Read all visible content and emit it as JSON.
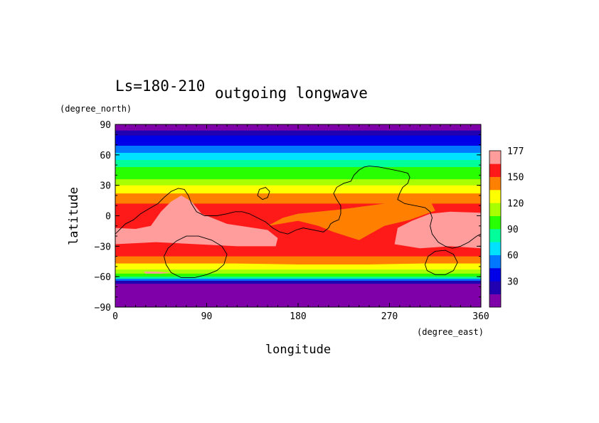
{
  "chart_data": {
    "type": "heatmap",
    "title": "outgoing longwave",
    "subtitle": "Ls=180-210",
    "xlabel": "longitude",
    "ylabel": "latitude",
    "xunit": "(degree_east)",
    "yunit": "(degree_north)",
    "xlim": [
      0,
      360
    ],
    "ylim": [
      -90,
      90
    ],
    "xticks": [
      "0",
      "90",
      "180",
      "270",
      "360"
    ],
    "yticks": [
      "90",
      "60",
      "30",
      "0",
      "-30",
      "-60",
      "-90"
    ],
    "colorbar": {
      "labels": [
        "177",
        "150",
        "120",
        "90",
        "60",
        "30"
      ],
      "levels": [
        0,
        15,
        30,
        45,
        60,
        75,
        90,
        105,
        120,
        135,
        150,
        165,
        177
      ],
      "colors": [
        "#7f00a8",
        "#2000b0",
        "#0000e8",
        "#0078ff",
        "#00e0ff",
        "#00ff9a",
        "#28ff00",
        "#a8ff00",
        "#ffff00",
        "#ff8000",
        "#ff1a1a",
        "#ff9c9c"
      ]
    },
    "bands": [
      {
        "lat": [
          84,
          90
        ],
        "level_index": 0
      },
      {
        "lat": [
          79,
          84
        ],
        "level_index": 1
      },
      {
        "lat": [
          69,
          79
        ],
        "level_index": 2
      },
      {
        "lat": [
          62,
          69
        ],
        "level_index": 3
      },
      {
        "lat": [
          55,
          62
        ],
        "level_index": 4
      },
      {
        "lat": [
          48,
          55
        ],
        "level_index": 5
      },
      {
        "lat": [
          36,
          48
        ],
        "level_index": 6
      },
      {
        "lat": [
          30,
          36
        ],
        "level_index": 7
      },
      {
        "lat": [
          22,
          30
        ],
        "level_index": 8
      },
      {
        "lat": [
          12,
          22
        ],
        "level_index": 9
      },
      {
        "lat": [
          -40,
          12
        ],
        "level_index": 10
      },
      {
        "lat": [
          -47,
          -40
        ],
        "level_index": 9
      },
      {
        "lat": [
          -53,
          -47
        ],
        "level_index": 8
      },
      {
        "lat": [
          -57,
          -53
        ],
        "level_index": 7
      },
      {
        "lat": [
          -60,
          -57
        ],
        "level_index": 6
      },
      {
        "lat": [
          -62,
          -60
        ],
        "level_index": 5
      },
      {
        "lat": [
          -64,
          -62
        ],
        "level_index": 3
      },
      {
        "lat": [
          -67,
          -64
        ],
        "level_index": 1
      },
      {
        "lat": [
          -90,
          -67
        ],
        "level_index": 0
      }
    ],
    "regions": [
      {
        "level_index": 9,
        "points": [
          [
            150,
            -10
          ],
          [
            165,
            -2
          ],
          [
            180,
            2
          ],
          [
            200,
            4
          ],
          [
            220,
            6
          ],
          [
            235,
            8
          ],
          [
            250,
            10
          ],
          [
            265,
            12
          ],
          [
            280,
            18
          ],
          [
            295,
            20
          ],
          [
            310,
            15
          ],
          [
            315,
            5
          ],
          [
            290,
            -4
          ],
          [
            265,
            -10
          ],
          [
            240,
            -24
          ],
          [
            215,
            -16
          ],
          [
            200,
            -10
          ],
          [
            180,
            -5
          ]
        ]
      },
      {
        "level_index": 9,
        "points": [
          [
            120,
            -42
          ],
          [
            180,
            -44
          ],
          [
            250,
            -44
          ],
          [
            300,
            -43
          ],
          [
            300,
            -47
          ],
          [
            250,
            -48
          ],
          [
            180,
            -48
          ],
          [
            120,
            -47
          ]
        ]
      },
      {
        "level_index": 11,
        "points": [
          [
            0,
            -12
          ],
          [
            20,
            -13
          ],
          [
            35,
            -10
          ],
          [
            45,
            4
          ],
          [
            55,
            14
          ],
          [
            65,
            20
          ],
          [
            75,
            14
          ],
          [
            85,
            2
          ],
          [
            110,
            -8
          ],
          [
            150,
            -14
          ],
          [
            160,
            -22
          ],
          [
            158,
            -30
          ],
          [
            120,
            -30
          ],
          [
            80,
            -28
          ],
          [
            40,
            -26
          ],
          [
            0,
            -28
          ]
        ]
      },
      {
        "level_index": 11,
        "points": [
          [
            275,
            -28
          ],
          [
            278,
            -12
          ],
          [
            292,
            -5
          ],
          [
            310,
            2
          ],
          [
            330,
            4
          ],
          [
            360,
            3
          ],
          [
            360,
            -32
          ],
          [
            330,
            -30
          ],
          [
            300,
            -32
          ]
        ]
      },
      {
        "level_index": 11,
        "points": [
          [
            28,
            -55
          ],
          [
            40,
            -55
          ],
          [
            55,
            -56
          ],
          [
            45,
            -57
          ],
          [
            30,
            -57
          ]
        ]
      }
    ],
    "contours": [
      [
        [
          0,
          -18
        ],
        [
          10,
          -8
        ],
        [
          18,
          -4
        ],
        [
          25,
          2
        ],
        [
          35,
          8
        ],
        [
          42,
          12
        ],
        [
          48,
          18
        ],
        [
          55,
          24
        ],
        [
          62,
          27
        ],
        [
          68,
          26
        ],
        [
          72,
          20
        ],
        [
          75,
          12
        ],
        [
          80,
          4
        ],
        [
          88,
          0
        ],
        [
          100,
          0
        ],
        [
          110,
          2
        ],
        [
          118,
          4
        ],
        [
          125,
          4
        ],
        [
          132,
          2
        ],
        [
          140,
          -2
        ],
        [
          148,
          -6
        ],
        [
          155,
          -12
        ],
        [
          162,
          -16
        ],
        [
          170,
          -18
        ],
        [
          178,
          -14
        ],
        [
          185,
          -12
        ],
        [
          195,
          -14
        ],
        [
          205,
          -16
        ],
        [
          210,
          -12
        ],
        [
          212,
          -8
        ],
        [
          215,
          -6
        ],
        [
          220,
          -4
        ],
        [
          222,
          2
        ],
        [
          222,
          10
        ],
        [
          218,
          16
        ],
        [
          215,
          22
        ],
        [
          218,
          28
        ],
        [
          225,
          32
        ],
        [
          232,
          34
        ],
        [
          235,
          40
        ],
        [
          240,
          45
        ],
        [
          245,
          48
        ],
        [
          250,
          49
        ],
        [
          260,
          48
        ],
        [
          270,
          46
        ],
        [
          280,
          44
        ],
        [
          288,
          42
        ],
        [
          290,
          38
        ],
        [
          288,
          32
        ],
        [
          283,
          28
        ],
        [
          280,
          22
        ],
        [
          278,
          16
        ],
        [
          285,
          12
        ],
        [
          295,
          10
        ],
        [
          305,
          8
        ],
        [
          310,
          4
        ],
        [
          312,
          -2
        ],
        [
          310,
          -10
        ],
        [
          312,
          -18
        ],
        [
          318,
          -26
        ],
        [
          325,
          -30
        ],
        [
          332,
          -32
        ],
        [
          340,
          -30
        ],
        [
          348,
          -26
        ],
        [
          356,
          -20
        ],
        [
          360,
          -18
        ]
      ],
      [
        [
          140,
          20
        ],
        [
          142,
          26
        ],
        [
          148,
          28
        ],
        [
          152,
          24
        ],
        [
          150,
          18
        ],
        [
          145,
          16
        ],
        [
          140,
          20
        ]
      ],
      [
        [
          48,
          -40
        ],
        [
          52,
          -32
        ],
        [
          60,
          -25
        ],
        [
          70,
          -20
        ],
        [
          82,
          -20
        ],
        [
          95,
          -24
        ],
        [
          105,
          -30
        ],
        [
          110,
          -38
        ],
        [
          107,
          -48
        ],
        [
          100,
          -54
        ],
        [
          90,
          -58
        ],
        [
          78,
          -61
        ],
        [
          65,
          -61
        ],
        [
          55,
          -56
        ],
        [
          50,
          -48
        ],
        [
          48,
          -40
        ]
      ],
      [
        [
          305,
          -48
        ],
        [
          308,
          -40
        ],
        [
          315,
          -35
        ],
        [
          325,
          -34
        ],
        [
          333,
          -38
        ],
        [
          337,
          -46
        ],
        [
          333,
          -54
        ],
        [
          325,
          -58
        ],
        [
          315,
          -58
        ],
        [
          307,
          -54
        ],
        [
          305,
          -48
        ]
      ]
    ]
  }
}
